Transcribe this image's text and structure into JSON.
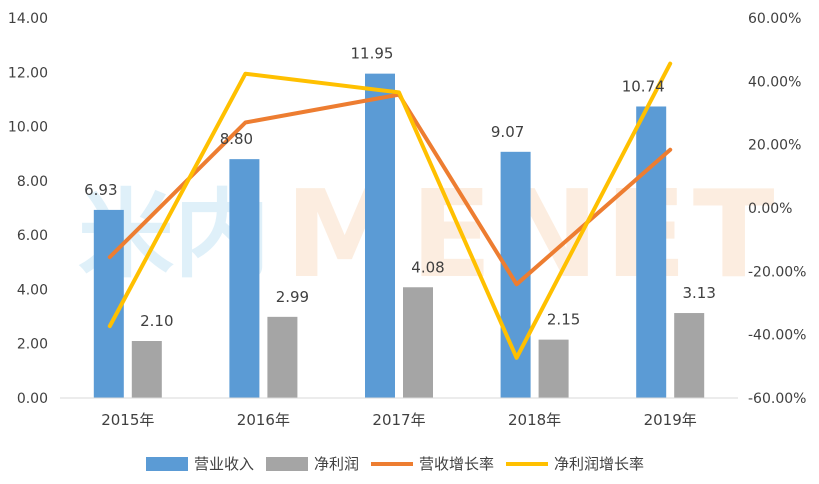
{
  "chart_data": {
    "type": "bar",
    "categories": [
      "2015年",
      "2016年",
      "2017年",
      "2018年",
      "2019年"
    ],
    "series": [
      {
        "name": "营业收入",
        "kind": "bar",
        "axis": "left",
        "color": "#5b9bd5",
        "values": [
          6.93,
          8.8,
          11.95,
          9.07,
          10.74
        ],
        "labels": [
          "6.93",
          "8.80",
          "11.95",
          "9.07",
          "10.74"
        ]
      },
      {
        "name": "净利润",
        "kind": "bar",
        "axis": "left",
        "color": "#a5a5a5",
        "values": [
          2.1,
          2.99,
          4.08,
          2.15,
          3.13
        ],
        "labels": [
          "2.10",
          "2.99",
          "4.08",
          "2.15",
          "3.13"
        ]
      },
      {
        "name": "营收增长率",
        "kind": "line",
        "axis": "right",
        "color": "#ed7d31",
        "values": [
          -15.5,
          27.0,
          35.8,
          -24.1,
          18.4
        ]
      },
      {
        "name": "净利润增长率",
        "kind": "line",
        "axis": "right",
        "color": "#ffc000",
        "values": [
          -37.3,
          42.4,
          36.5,
          -47.3,
          45.6
        ]
      }
    ],
    "y_left": {
      "min": 0,
      "max": 14,
      "step": 2,
      "tick_labels": [
        "0.00",
        "2.00",
        "4.00",
        "6.00",
        "8.00",
        "10.00",
        "12.00",
        "14.00"
      ]
    },
    "y_right": {
      "min": -60,
      "max": 60,
      "step": 20,
      "tick_labels": [
        "-60.00%",
        "-40.00%",
        "-20.00%",
        "0.00%",
        "20.00%",
        "40.00%",
        "60.00%"
      ]
    },
    "grid": false,
    "legend_position": "bottom"
  },
  "watermark": {
    "cn": "米内",
    "en": "MENET"
  }
}
